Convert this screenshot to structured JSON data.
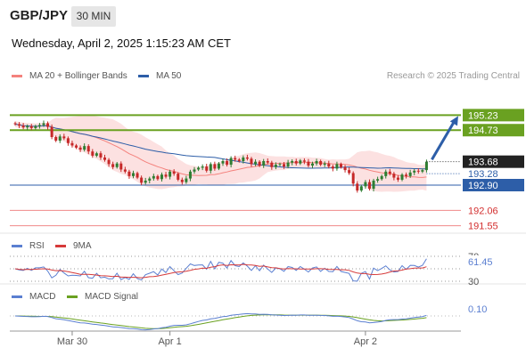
{
  "header": {
    "symbol": "GBP/JPY",
    "timeframe": "30 MIN",
    "datetime": "Wednesday, April 2, 2025 1:15:23 AM CET"
  },
  "main_legend": [
    {
      "label": "MA 20 + Bollinger Bands",
      "color": "#f4827d"
    },
    {
      "label": "MA 50",
      "color": "#2d5ea8"
    }
  ],
  "credit": "Research © 2025 Trading Central",
  "chart_data": [
    {
      "type": "candlestick",
      "title": "GBP/JPY 30 MIN",
      "ylim": [
        191.3,
        196.1
      ],
      "x_ticks": [
        "Mar 30",
        "Apr 1",
        "Apr 2"
      ],
      "current_price": "193.68",
      "ma50_last": "193.28",
      "resistances": [
        "195.23",
        "194.73"
      ],
      "supports": [
        "192.90",
        "192.06",
        "191.55"
      ],
      "arrow": {
        "from": 193.75,
        "to": 195.2,
        "direction": "up"
      },
      "colors": {
        "up": "#2e7d32",
        "down": "#c62828",
        "resistance": "#6aa121",
        "support_strong": "#2d5ea8",
        "support_weak": "#f0898a",
        "ma20": "#f4827d",
        "ma50": "#2d5ea8",
        "band": "#fbd9d9"
      },
      "close": [
        194.93,
        194.88,
        194.82,
        194.86,
        194.8,
        194.86,
        194.9,
        194.96,
        194.84,
        194.5,
        194.38,
        194.52,
        194.46,
        194.3,
        194.22,
        194.15,
        194.08,
        194.2,
        194.02,
        193.88,
        193.96,
        193.82,
        193.74,
        193.6,
        193.5,
        193.62,
        193.42,
        193.35,
        193.2,
        193.3,
        193.15,
        192.98,
        193.05,
        193.12,
        193.2,
        193.1,
        193.25,
        193.18,
        193.35,
        193.28,
        193.08,
        193.0,
        193.12,
        193.35,
        193.42,
        193.48,
        193.52,
        193.38,
        193.6,
        193.45,
        193.62,
        193.7,
        193.58,
        193.8,
        193.75,
        193.7,
        193.82,
        193.78,
        193.6,
        193.68,
        193.55,
        193.7,
        193.65,
        193.5,
        193.58,
        193.6,
        193.52,
        193.65,
        193.7,
        193.62,
        193.72,
        193.68,
        193.55,
        193.62,
        193.7,
        193.58,
        193.62,
        193.52,
        193.45,
        193.6,
        193.5,
        193.4,
        193.3,
        192.95,
        192.72,
        192.86,
        193.0,
        192.78,
        193.05,
        193.1,
        193.2,
        193.35,
        193.28,
        193.15,
        193.08,
        193.25,
        193.2,
        193.32,
        193.38,
        193.35,
        193.4,
        193.68
      ]
    },
    {
      "type": "line",
      "title": "RSI",
      "series": [
        {
          "name": "RSI",
          "color": "#5b7fd1"
        },
        {
          "name": "9MA",
          "color": "#d63a3a"
        }
      ],
      "levels": [
        "70",
        "50",
        "30"
      ],
      "last_value": "61.45"
    },
    {
      "type": "line",
      "title": "MACD",
      "series": [
        {
          "name": "MACD",
          "color": "#5b7fd1"
        },
        {
          "name": "MACD Signal",
          "color": "#6aa121"
        }
      ],
      "last_value": "0.10"
    }
  ]
}
